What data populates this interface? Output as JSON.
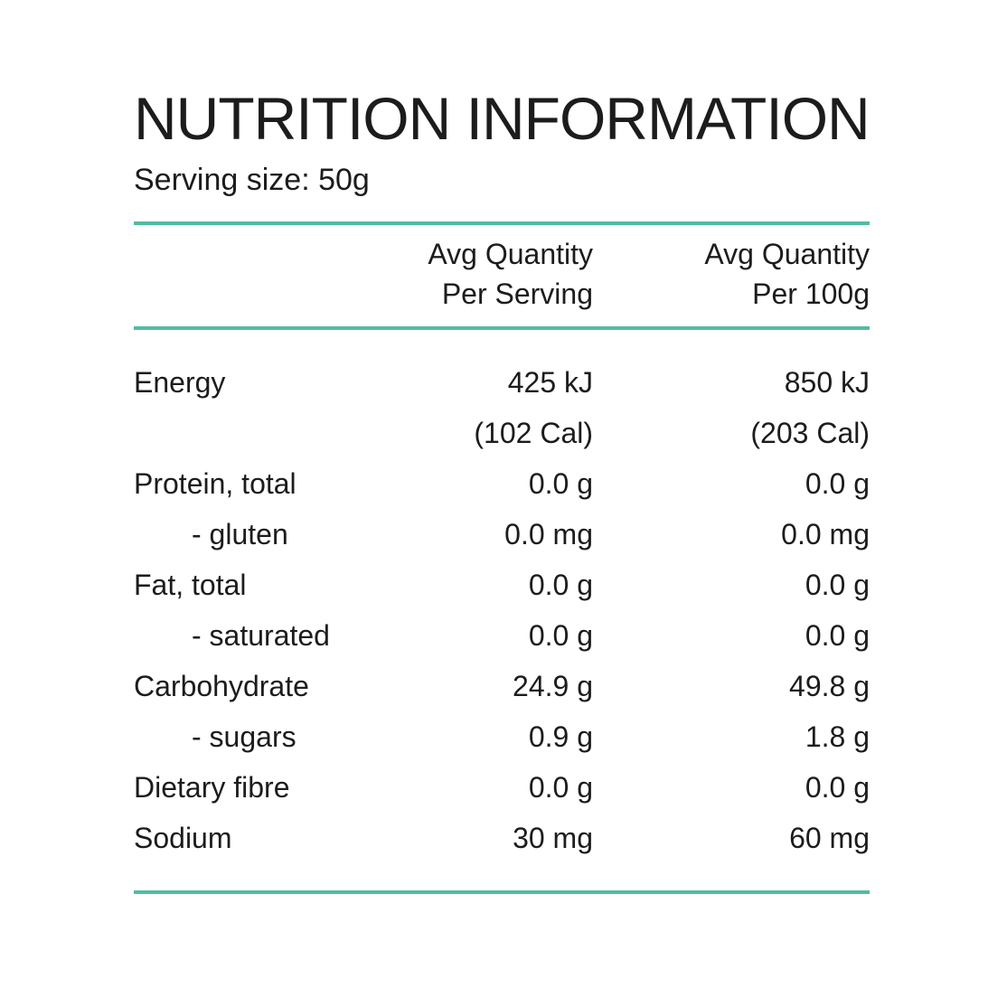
{
  "colors": {
    "accent": "#53bba3",
    "text": "#1c1c1c"
  },
  "header": {
    "title": "NUTRITION INFORMATION",
    "serving_size": "Serving size: 50g"
  },
  "table": {
    "column_headers": {
      "per_serving_line1": "Avg Quantity",
      "per_serving_line2": "Per Serving",
      "per_100g_line1": "Avg Quantity",
      "per_100g_line2": "Per 100g"
    },
    "rows": [
      {
        "label": "Energy",
        "per_serving": "425 kJ",
        "per_100g": "850 kJ"
      },
      {
        "label": "",
        "per_serving": "(102 Cal)",
        "per_100g": "(203 Cal)"
      },
      {
        "label": "Protein, total",
        "per_serving": "0.0 g",
        "per_100g": "0.0 g"
      },
      {
        "label": "- gluten",
        "per_serving": "0.0 mg",
        "per_100g": "0.0 mg"
      },
      {
        "label": "Fat, total",
        "per_serving": "0.0 g",
        "per_100g": "0.0 g"
      },
      {
        "label": "- saturated",
        "per_serving": "0.0 g",
        "per_100g": "0.0 g"
      },
      {
        "label": "Carbohydrate",
        "per_serving": "24.9 g",
        "per_100g": "49.8 g"
      },
      {
        "label": "- sugars",
        "per_serving": "0.9 g",
        "per_100g": "1.8 g"
      },
      {
        "label": "Dietary fibre",
        "per_serving": "0.0 g",
        "per_100g": "0.0 g"
      },
      {
        "label": "Sodium",
        "per_serving": "30 mg",
        "per_100g": "60 mg"
      }
    ]
  }
}
